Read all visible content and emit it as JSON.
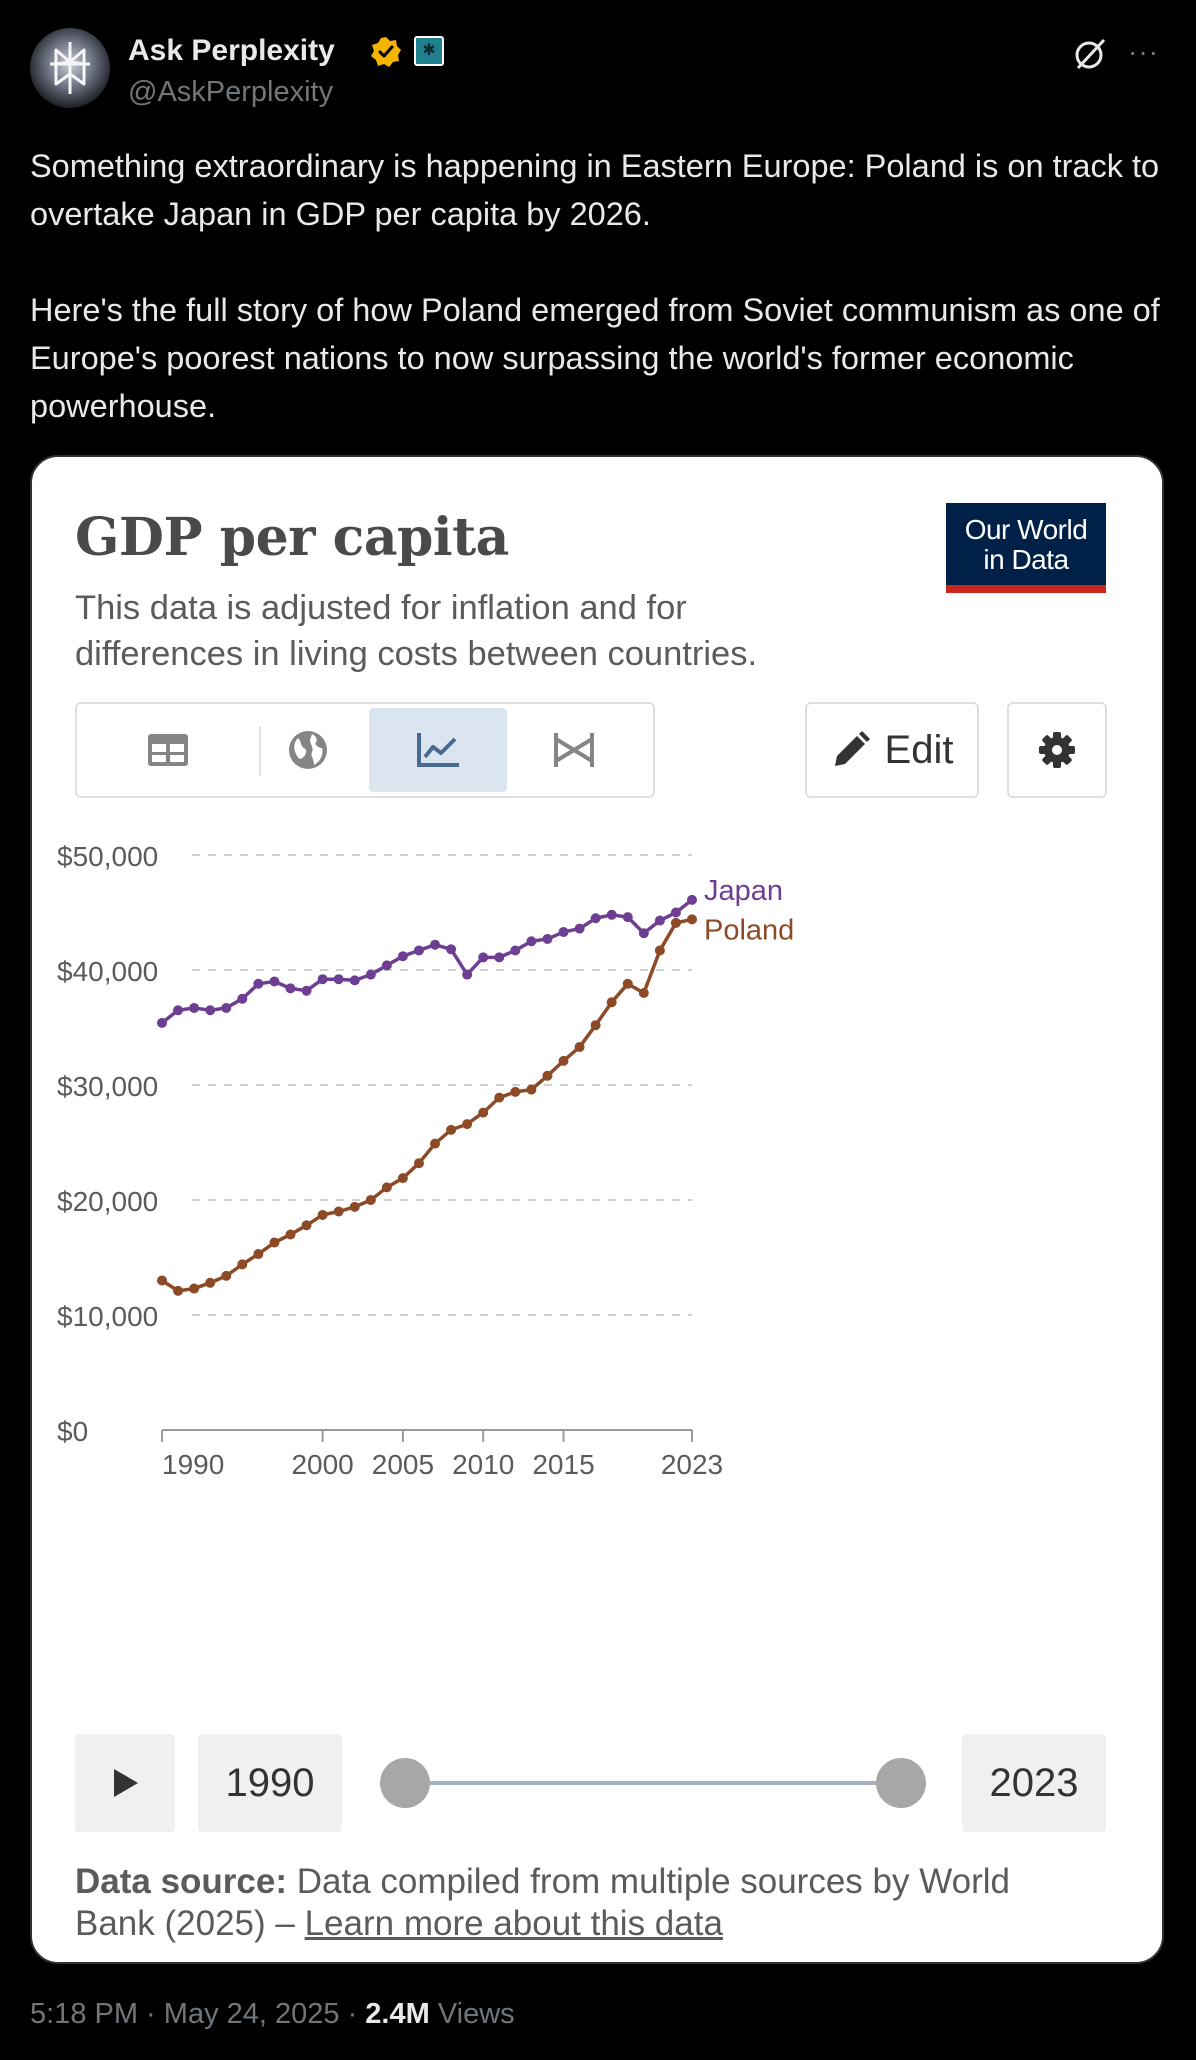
{
  "tweet": {
    "display_name": "Ask Perplexity",
    "handle": "@AskPerplexity",
    "paragraphs": [
      "Something extraordinary is happening in Eastern Europe: Poland is on track to overtake Japan in GDP per capita by 2026.",
      "Here's the full story of how Poland emerged from Soviet communism as one of Europe's poorest nations to now surpassing the world's former economic powerhouse."
    ],
    "time": "5:18 PM",
    "date": "May 24, 2025",
    "views_count": "2.4M",
    "views_label": "Views",
    "icons": {
      "verified": "verified-badge-icon",
      "affiliate": "perplexity-affiliate-icon",
      "grok": "grok-icon",
      "more": "more-options-icon"
    },
    "colors": {
      "verified": "#f4b400",
      "text": "#e7e9ea",
      "secondary": "#71767b",
      "background": "#000000"
    }
  },
  "card": {
    "title": "GDP per capita",
    "subtitle": "This data is adjusted for inflation and for differences in living costs between countries.",
    "logo_line1": "Our World",
    "logo_line2": "in Data",
    "tabs": [
      {
        "name": "table",
        "icon": "table-icon",
        "active": false
      },
      {
        "name": "map",
        "icon": "globe-icon",
        "active": false
      },
      {
        "name": "chart",
        "icon": "line-chart-icon",
        "active": true
      },
      {
        "name": "slope",
        "icon": "slope-chart-icon",
        "active": false
      }
    ],
    "edit_label": "Edit",
    "timeline": {
      "start_label": "1990",
      "end_label": "2023",
      "start_year": 1990,
      "end_year": 2023
    },
    "source_label": "Data source:",
    "source_text": " Data compiled from multiple sources by World Bank (2025) – ",
    "source_link": "Learn more about this data"
  },
  "chart_data": {
    "type": "line",
    "title": "GDP per capita",
    "subtitle": "This data is adjusted for inflation and for differences in living costs between countries.",
    "xlabel": "",
    "ylabel": "",
    "xlim": [
      1990,
      2023
    ],
    "ylim": [
      0,
      50000
    ],
    "yticks": [
      0,
      10000,
      20000,
      30000,
      40000,
      50000
    ],
    "ytick_labels": [
      "$0",
      "$10,000",
      "$20,000",
      "$30,000",
      "$40,000",
      "$50,000"
    ],
    "xticks": [
      1990,
      2000,
      2005,
      2010,
      2015,
      2023
    ],
    "xtick_labels": [
      "1990",
      "2000",
      "2005",
      "2010",
      "2015",
      "2023"
    ],
    "grid": "horizontal dashed",
    "legend": "inline labels at line ends",
    "x": [
      1990,
      1991,
      1992,
      1993,
      1994,
      1995,
      1996,
      1997,
      1998,
      1999,
      2000,
      2001,
      2002,
      2003,
      2004,
      2005,
      2006,
      2007,
      2008,
      2009,
      2010,
      2011,
      2012,
      2013,
      2014,
      2015,
      2016,
      2017,
      2018,
      2019,
      2020,
      2021,
      2022,
      2023
    ],
    "series": [
      {
        "name": "Japan",
        "color": "#6d3e91",
        "values": [
          35400,
          36500,
          36700,
          36500,
          36700,
          37500,
          38800,
          39000,
          38400,
          38200,
          39200,
          39200,
          39100,
          39600,
          40400,
          41200,
          41700,
          42200,
          41800,
          39600,
          41100,
          41100,
          41700,
          42500,
          42700,
          43300,
          43600,
          44500,
          44800,
          44600,
          43200,
          44300,
          45000,
          46100
        ]
      },
      {
        "name": "Poland",
        "color": "#8c4a26",
        "values": [
          13000,
          12100,
          12300,
          12800,
          13400,
          14400,
          15300,
          16300,
          17000,
          17800,
          18700,
          19000,
          19400,
          20000,
          21100,
          21900,
          23200,
          24900,
          26100,
          26600,
          27600,
          28900,
          29400,
          29600,
          30800,
          32100,
          33300,
          35200,
          37200,
          38800,
          38000,
          41700,
          44100,
          44400
        ]
      }
    ]
  }
}
